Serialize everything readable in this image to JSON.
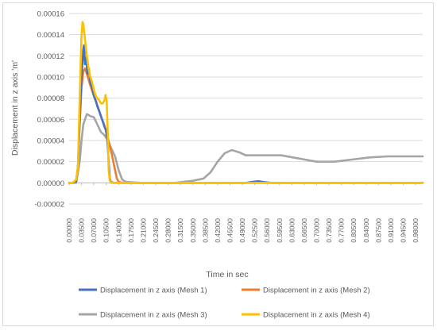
{
  "chart_data": {
    "type": "line",
    "title": "",
    "xlabel": "Time in sec",
    "ylabel": "Displacement in z axis 'm'",
    "xlim": [
      0,
      1.0
    ],
    "ylim": [
      -2e-05,
      0.00016
    ],
    "grid": true,
    "legend_position": "bottom",
    "y_ticks": [
      "-0.00002",
      "0.00000",
      "0.00002",
      "0.00004",
      "0.00006",
      "0.00008",
      "0.00010",
      "0.00012",
      "0.00014",
      "0.00016"
    ],
    "y_tick_values": [
      -2e-05,
      0,
      2e-05,
      4e-05,
      6e-05,
      8e-05,
      0.0001,
      0.00012,
      0.00014,
      0.00016
    ],
    "x_ticks": [
      "0.00000",
      "0.03500",
      "0.07000",
      "0.10500",
      "0.14000",
      "0.17500",
      "0.21000",
      "0.24500",
      "0.28000",
      "0.31500",
      "0.35000",
      "0.38500",
      "0.42000",
      "0.45500",
      "0.49000",
      "0.52500",
      "0.56000",
      "0.59500",
      "0.63000",
      "0.66500",
      "0.70000",
      "0.73500",
      "0.77000",
      "0.80500",
      "0.84000",
      "0.87500",
      "0.91000",
      "0.94500",
      "0.98000"
    ],
    "x_tick_values": [
      0,
      0.035,
      0.07,
      0.105,
      0.14,
      0.175,
      0.21,
      0.245,
      0.28,
      0.315,
      0.35,
      0.385,
      0.42,
      0.455,
      0.49,
      0.525,
      0.56,
      0.595,
      0.63,
      0.665,
      0.7,
      0.735,
      0.77,
      0.805,
      0.84,
      0.875,
      0.91,
      0.945,
      0.98
    ],
    "series": [
      {
        "name": "Displacement in z axis (Mesh 1)",
        "color": "#4472c4",
        "points": [
          [
            0,
            0
          ],
          [
            0.01,
            0
          ],
          [
            0.02,
            1.5e-06
          ],
          [
            0.025,
            1.5e-05
          ],
          [
            0.03,
            6e-05
          ],
          [
            0.035,
            0.0001
          ],
          [
            0.04,
            0.000125
          ],
          [
            0.042,
            0.00013
          ],
          [
            0.045,
            0.000112
          ],
          [
            0.048,
            0.000118
          ],
          [
            0.052,
            0.000103
          ],
          [
            0.056,
            0.000108
          ],
          [
            0.06,
            9.5e-05
          ],
          [
            0.065,
            9e-05
          ],
          [
            0.07,
            8.2e-05
          ],
          [
            0.075,
            7.8e-05
          ],
          [
            0.08,
            7.2e-05
          ],
          [
            0.085,
            6.8e-05
          ],
          [
            0.09,
            6.3e-05
          ],
          [
            0.095,
            5.8e-05
          ],
          [
            0.1,
            5.3e-05
          ],
          [
            0.104,
            5e-05
          ],
          [
            0.108,
            4e-05
          ],
          [
            0.112,
            2e-05
          ],
          [
            0.115,
            4e-06
          ],
          [
            0.118,
            1e-06
          ],
          [
            0.125,
            0
          ],
          [
            0.5,
            0
          ],
          [
            0.52,
            1e-06
          ],
          [
            0.535,
            1.5e-06
          ],
          [
            0.55,
            8e-07
          ],
          [
            0.57,
            0
          ],
          [
            1.0,
            0
          ]
        ]
      },
      {
        "name": "Displacement in z axis (Mesh 2)",
        "color": "#ed7d31",
        "points": [
          [
            0,
            0
          ],
          [
            0.01,
            0
          ],
          [
            0.02,
            2e-06
          ],
          [
            0.025,
            1.5e-05
          ],
          [
            0.03,
            5.5e-05
          ],
          [
            0.035,
            9e-05
          ],
          [
            0.04,
            0.000105
          ],
          [
            0.045,
            0.000108
          ],
          [
            0.05,
            0.000103
          ],
          [
            0.06,
            9.2e-05
          ],
          [
            0.07,
            8.2e-05
          ],
          [
            0.08,
            7.3e-05
          ],
          [
            0.09,
            6.3e-05
          ],
          [
            0.1,
            5.4e-05
          ],
          [
            0.11,
            4.2e-05
          ],
          [
            0.12,
            2.8e-05
          ],
          [
            0.13,
            1.2e-05
          ],
          [
            0.135,
            4e-06
          ],
          [
            0.14,
            1e-06
          ],
          [
            0.15,
            0
          ],
          [
            1.0,
            0
          ]
        ]
      },
      {
        "name": "Displacement in z axis (Mesh 3)",
        "color": "#a5a5a5",
        "points": [
          [
            0,
            0
          ],
          [
            0.02,
            0
          ],
          [
            0.03,
            2e-05
          ],
          [
            0.035,
            4e-05
          ],
          [
            0.04,
            5.5e-05
          ],
          [
            0.045,
            6e-05
          ],
          [
            0.05,
            6.5e-05
          ],
          [
            0.06,
            6.3e-05
          ],
          [
            0.07,
            6.2e-05
          ],
          [
            0.08,
            5.5e-05
          ],
          [
            0.09,
            4.8e-05
          ],
          [
            0.1,
            4.5e-05
          ],
          [
            0.11,
            4e-05
          ],
          [
            0.12,
            3.2e-05
          ],
          [
            0.13,
            2.5e-05
          ],
          [
            0.14,
            1.2e-05
          ],
          [
            0.15,
            3e-06
          ],
          [
            0.16,
            1e-06
          ],
          [
            0.2,
            0
          ],
          [
            0.3,
            0
          ],
          [
            0.35,
            2e-06
          ],
          [
            0.38,
            4e-06
          ],
          [
            0.4,
            1e-05
          ],
          [
            0.42,
            2e-05
          ],
          [
            0.44,
            2.8e-05
          ],
          [
            0.46,
            3.1e-05
          ],
          [
            0.48,
            2.9e-05
          ],
          [
            0.5,
            2.6e-05
          ],
          [
            0.55,
            2.6e-05
          ],
          [
            0.6,
            2.6e-05
          ],
          [
            0.65,
            2.3e-05
          ],
          [
            0.7,
            2e-05
          ],
          [
            0.75,
            2e-05
          ],
          [
            0.8,
            2.2e-05
          ],
          [
            0.85,
            2.4e-05
          ],
          [
            0.9,
            2.5e-05
          ],
          [
            0.95,
            2.5e-05
          ],
          [
            1.0,
            2.5e-05
          ]
        ]
      },
      {
        "name": "Displacement in z axis (Mesh 4)",
        "color": "#ffc000",
        "points": [
          [
            0,
            0
          ],
          [
            0.01,
            0
          ],
          [
            0.02,
            3e-06
          ],
          [
            0.025,
            1.5e-05
          ],
          [
            0.03,
            8e-05
          ],
          [
            0.035,
            0.00014
          ],
          [
            0.038,
            0.000152
          ],
          [
            0.04,
            0.00015
          ],
          [
            0.045,
            0.000135
          ],
          [
            0.05,
            0.00012
          ],
          [
            0.055,
            0.000108
          ],
          [
            0.06,
            0.0001
          ],
          [
            0.065,
            9.5e-05
          ],
          [
            0.07,
            8.8e-05
          ],
          [
            0.075,
            8.2e-05
          ],
          [
            0.08,
            8e-05
          ],
          [
            0.085,
            7.8e-05
          ],
          [
            0.09,
            7.5e-05
          ],
          [
            0.095,
            7.5e-05
          ],
          [
            0.1,
            7.8e-05
          ],
          [
            0.103,
            8.3e-05
          ],
          [
            0.106,
            7.8e-05
          ],
          [
            0.109,
            5e-05
          ],
          [
            0.112,
            1.2e-05
          ],
          [
            0.115,
            2e-06
          ],
          [
            0.12,
            0
          ],
          [
            1.0,
            0
          ]
        ]
      }
    ]
  }
}
